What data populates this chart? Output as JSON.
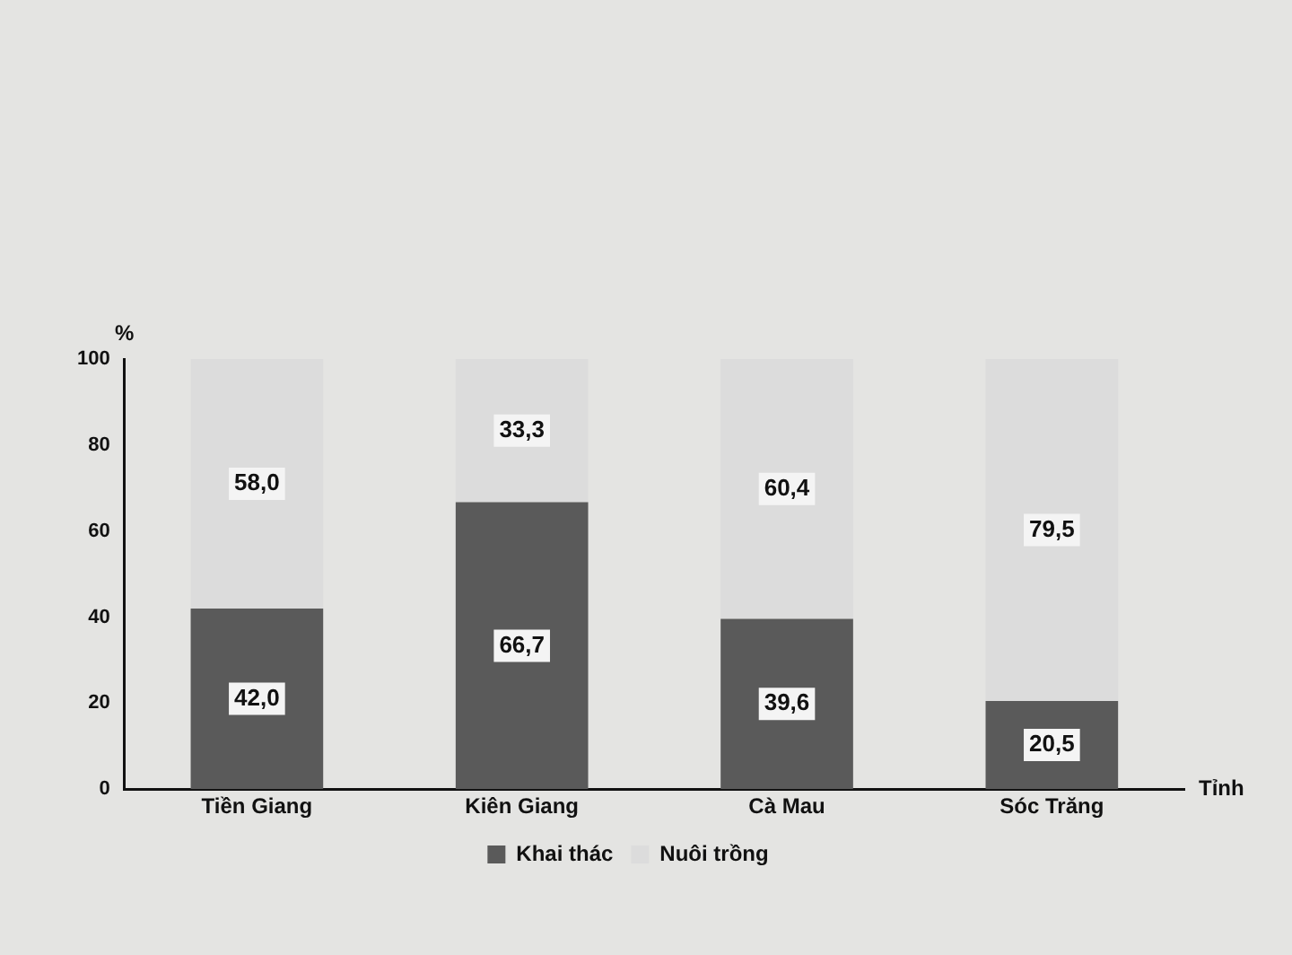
{
  "chart_data": {
    "type": "bar",
    "stacked": true,
    "xlabel": "Tỉnh",
    "ylabel": "%",
    "categories": [
      "Tiền Giang",
      "Kiên Giang",
      "Cà Mau",
      "Sóc Trăng"
    ],
    "series": [
      {
        "name": "Khai thác",
        "color": "#5a5a5a",
        "values": [
          42.0,
          66.7,
          39.6,
          20.5
        ],
        "value_labels": [
          "42,0",
          "66,7",
          "39,6",
          "20,5"
        ]
      },
      {
        "name": "Nuôi trồng",
        "color": "#dcdcdc",
        "values": [
          58.0,
          33.3,
          60.4,
          79.5
        ],
        "value_labels": [
          "58,0",
          "33,3",
          "60,4",
          "79,5"
        ]
      }
    ],
    "ylim": [
      0,
      100
    ],
    "yticks": [
      0,
      20,
      40,
      60,
      80,
      100
    ],
    "grid": false,
    "legend": "bottom"
  }
}
